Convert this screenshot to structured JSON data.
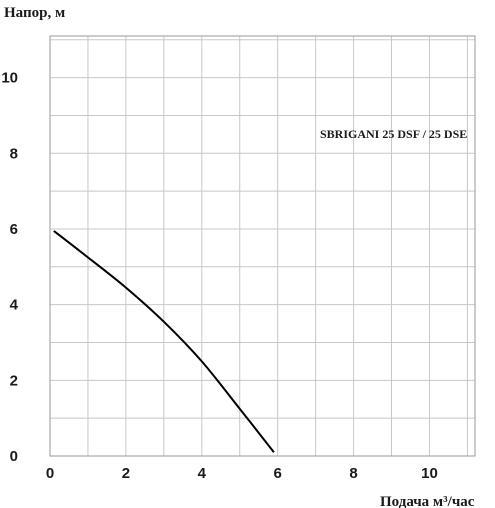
{
  "chart_data": {
    "type": "line",
    "title": "",
    "ylabel": "Напор, м",
    "xlabel": "Подача  м³/час",
    "annotation": "SBRIGANI 25 DSF / 25 DSE",
    "xlim": [
      0,
      11.2
    ],
    "ylim": [
      0,
      11.1
    ],
    "x_ticks": [
      0,
      2,
      4,
      6,
      8,
      10
    ],
    "y_ticks": [
      0,
      2,
      4,
      6,
      8,
      10
    ],
    "x_tick_labels": [
      "0",
      "2",
      "4",
      "6",
      "8",
      "10"
    ],
    "y_tick_labels": [
      "0",
      "2",
      "4",
      "6",
      "8",
      "10"
    ],
    "grid": true,
    "series": [
      {
        "color": "#000000",
        "x": [
          0.1,
          1,
          2,
          3,
          4,
          5,
          5.9
        ],
        "y": [
          5.95,
          5.25,
          4.45,
          3.55,
          2.5,
          1.25,
          0.1
        ]
      }
    ]
  }
}
